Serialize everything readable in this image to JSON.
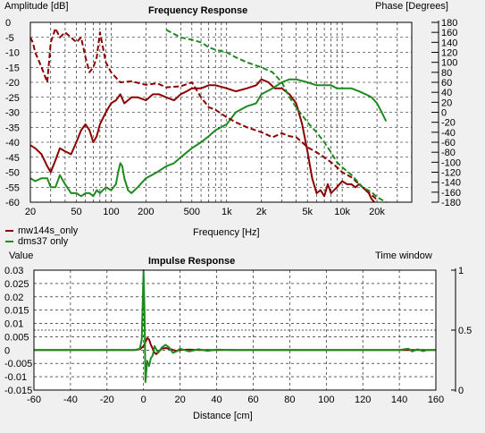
{
  "colors": {
    "mw144s": "#8b0000",
    "dms37": "#1f8a1f",
    "grid": "#000000"
  },
  "frequency_panel": {
    "title": "Frequency Response",
    "ylabel_left": "Amplitude [dB]",
    "ylabel_right": "Phase [Degrees]",
    "xlabel": "Frequency [Hz]",
    "legend": [
      "mw144s_only",
      "dms37 only"
    ]
  },
  "impulse_panel": {
    "title": "Impulse Response",
    "ylabel_left": "Value",
    "ylabel_right": "Time window",
    "xlabel": "Distance [cm]"
  },
  "chart_data": [
    {
      "type": "line",
      "title": "Frequency Response",
      "xlabel": "Frequency [Hz]",
      "ylabel": "Amplitude [dB]",
      "y2label": "Phase [Degrees]",
      "xscale": "log",
      "xlim": [
        20,
        40000
      ],
      "ylim": [
        -60,
        0
      ],
      "y2lim": [
        -180,
        180
      ],
      "grid": true,
      "x_ticks": [
        20,
        50,
        100,
        200,
        500,
        1000,
        2000,
        5000,
        10000,
        20000
      ],
      "x_tick_labels": [
        "20",
        "50",
        "100",
        "200",
        "500",
        "1k",
        "2k",
        "5k",
        "10k",
        "20k"
      ],
      "y_ticks": [
        0,
        -5,
        -10,
        -15,
        -20,
        -25,
        -30,
        -35,
        -40,
        -45,
        -50,
        -55,
        -60
      ],
      "y2_ticks": [
        180,
        160,
        140,
        120,
        100,
        80,
        60,
        40,
        20,
        0,
        -20,
        -40,
        -60,
        -80,
        -100,
        -120,
        -140,
        -160,
        -180
      ],
      "series": [
        {
          "name": "mw144s_only",
          "kind": "amplitude",
          "axis": "left",
          "x": [
            20,
            22,
            25,
            28,
            30,
            33,
            36,
            40,
            45,
            50,
            55,
            60,
            65,
            70,
            75,
            80,
            90,
            100,
            110,
            120,
            130,
            140,
            150,
            170,
            200,
            230,
            260,
            300,
            350,
            400,
            450,
            500,
            600,
            700,
            800,
            1000,
            1200,
            1500,
            1800,
            2000,
            2300,
            2600,
            3000,
            3500,
            4000,
            4500,
            5000,
            5500,
            6000,
            6500,
            7000,
            7500,
            8000,
            9000,
            10000,
            11000,
            12000,
            13000,
            14000,
            15000,
            16000,
            17000,
            18000,
            19000
          ],
          "y": [
            -41,
            -42,
            -44,
            -48,
            -50,
            -46,
            -42,
            -43,
            -44,
            -40,
            -36,
            -34,
            -36,
            -40,
            -38,
            -34,
            -30,
            -27,
            -26,
            -24,
            -27,
            -26,
            -25,
            -25,
            -26,
            -24,
            -24,
            -25,
            -26,
            -24,
            -23,
            -22,
            -22,
            -21,
            -21,
            -22,
            -23,
            -22,
            -21,
            -19,
            -20,
            -22,
            -22,
            -24,
            -27,
            -34,
            -43,
            -52,
            -57,
            -56,
            -58,
            -54,
            -57,
            -55,
            -53,
            -54,
            -54,
            -55,
            -54,
            -55,
            -56,
            -57,
            -59,
            -60
          ]
        },
        {
          "name": "dms37 only",
          "kind": "amplitude",
          "axis": "left",
          "x": [
            20,
            22,
            25,
            28,
            30,
            33,
            36,
            40,
            45,
            50,
            55,
            60,
            65,
            70,
            75,
            80,
            90,
            100,
            110,
            115,
            120,
            125,
            130,
            140,
            150,
            170,
            200,
            250,
            300,
            350,
            400,
            500,
            600,
            700,
            800,
            1000,
            1200,
            1500,
            1800,
            2000,
            2500,
            3000,
            3500,
            4000,
            5000,
            6000,
            7000,
            8000,
            9000,
            10000,
            12000,
            14000,
            16000,
            18000,
            20000,
            22000,
            24000
          ],
          "y": [
            -52,
            -53,
            -52,
            -52,
            -55,
            -55,
            -51,
            -54,
            -57,
            -57,
            -58,
            -57,
            -57,
            -58,
            -56,
            -57,
            -55,
            -56,
            -54,
            -50,
            -47,
            -48,
            -52,
            -56,
            -57,
            -55,
            -52,
            -50,
            -48,
            -47,
            -45,
            -42,
            -40,
            -38,
            -36,
            -34,
            -30,
            -28,
            -27,
            -24,
            -22,
            -20,
            -19,
            -19,
            -20,
            -21,
            -21,
            -21,
            -22,
            -22,
            -22,
            -23,
            -24,
            -25,
            -27,
            -30,
            -33
          ]
        },
        {
          "name": "mw144s_only",
          "kind": "phase",
          "axis": "right",
          "x": [
            20,
            21,
            22,
            24,
            26,
            28,
            30,
            33,
            36,
            40,
            45,
            50,
            55,
            60,
            65,
            70,
            75,
            80,
            90,
            100,
            120,
            150,
            200,
            250,
            300,
            400,
            500,
            600,
            700,
            800,
            1000,
            1200,
            1500,
            2000,
            2500,
            3000,
            3500,
            4000,
            4500,
            5000,
            6000,
            7000,
            8000,
            9000,
            10000,
            12000,
            15000,
            20000
          ],
          "y": [
            150,
            140,
            120,
            100,
            80,
            60,
            140,
            168,
            150,
            160,
            150,
            140,
            150,
            110,
            80,
            90,
            110,
            160,
            100,
            80,
            60,
            62,
            55,
            58,
            50,
            52,
            60,
            30,
            10,
            5,
            -10,
            -20,
            -30,
            -40,
            -50,
            -42,
            -48,
            -50,
            -60,
            -70,
            -80,
            -90,
            -100,
            -110,
            -120,
            -130,
            -150,
            -175
          ]
        },
        {
          "name": "dms37 only",
          "kind": "phase",
          "axis": "right",
          "x": [
            300,
            400,
            500,
            600,
            700,
            800,
            1000,
            1200,
            1500,
            2000,
            2500,
            3000,
            3500,
            4000,
            5000,
            6000,
            7000,
            8000,
            9000,
            10000,
            12000,
            15000,
            18000,
            20000,
            22000,
            24000
          ],
          "y": [
            165,
            150,
            145,
            140,
            130,
            125,
            120,
            110,
            100,
            90,
            80,
            60,
            30,
            10,
            -20,
            -40,
            -60,
            -80,
            -100,
            -110,
            -125,
            -150,
            -160,
            -170,
            -175,
            -180
          ]
        }
      ]
    },
    {
      "type": "line",
      "title": "Impulse Response",
      "xlabel": "Distance [cm]",
      "ylabel": "Value",
      "y2label": "Time window",
      "xlim": [
        -60,
        160
      ],
      "ylim": [
        -0.015,
        0.03
      ],
      "y2lim": [
        0,
        1
      ],
      "grid": true,
      "x_ticks": [
        -60,
        -40,
        -20,
        0,
        20,
        40,
        60,
        80,
        100,
        120,
        140,
        160
      ],
      "y_ticks": [
        0.03,
        0.025,
        0.02,
        0.015,
        0.01,
        0.005,
        0,
        -0.005,
        -0.01,
        -0.015
      ],
      "y_tick_labels": [
        "0.03",
        "0.025",
        "0.02",
        "0.015",
        "0.01",
        "0.005",
        "0",
        "-0.005",
        "-0.01",
        "-0.015"
      ],
      "y2_ticks": [
        1,
        0.5,
        0
      ],
      "series": [
        {
          "name": "mw144s_only",
          "x": [
            -60,
            -5,
            -2,
            0,
            1,
            2,
            3,
            4,
            5,
            6,
            7,
            8,
            10,
            12,
            15,
            18,
            20,
            25,
            30,
            40,
            60,
            80,
            100,
            120,
            140,
            145,
            150,
            155,
            160
          ],
          "y": [
            0,
            0,
            0.0003,
            0.0015,
            0.003,
            0.0045,
            0.004,
            0.002,
            0.0005,
            -0.001,
            -0.0015,
            -0.0008,
            0.0005,
            0.0008,
            0.0003,
            -0.0003,
            0,
            0.0002,
            0,
            0,
            0,
            0,
            0,
            0,
            0,
            0,
            0,
            0,
            0
          ]
        },
        {
          "name": "dms37 only",
          "x": [
            -60,
            -5,
            -2,
            -1,
            0,
            0.5,
            1,
            1.5,
            2,
            3,
            4,
            5,
            6,
            8,
            10,
            12,
            14,
            16,
            18,
            20,
            25,
            30,
            35,
            40,
            50,
            60,
            80,
            100,
            120,
            140,
            145,
            147,
            150,
            153,
            155,
            160
          ],
          "y": [
            0,
            0,
            0.0005,
            0.004,
            0.03,
            0.015,
            -0.012,
            -0.008,
            -0.004,
            -0.006,
            -0.003,
            -0.002,
            0.0015,
            -0.001,
            0.001,
            0.002,
            0.001,
            -0.001,
            -0.0005,
            0.0005,
            -0.0005,
            0.0003,
            -0.0003,
            0.0002,
            0,
            0,
            0,
            0,
            0,
            0,
            0.0005,
            -0.0005,
            0.0003,
            -0.0004,
            0,
            0
          ]
        }
      ],
      "time_window": {
        "x": [
          -60,
          160
        ],
        "y": [
          0.5,
          0.5
        ]
      }
    }
  ]
}
